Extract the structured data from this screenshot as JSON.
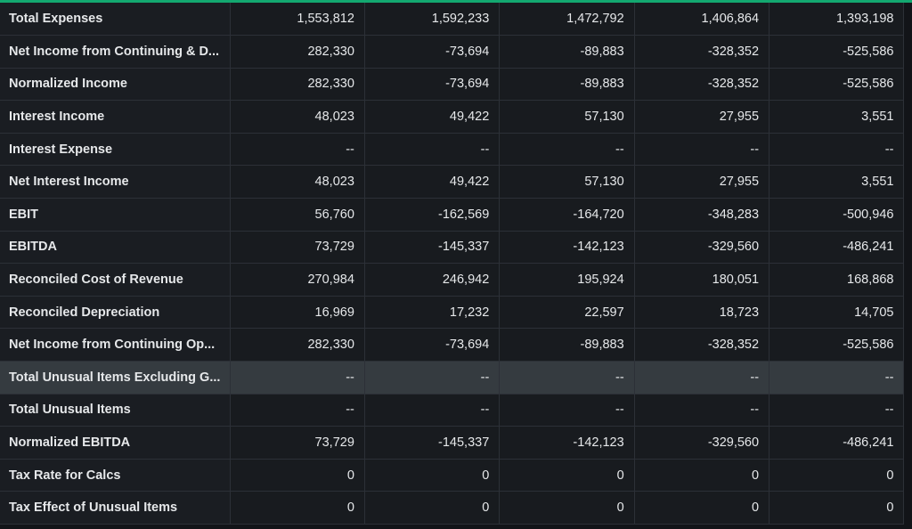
{
  "table": {
    "rows": [
      {
        "label": "Total Expenses",
        "values": [
          "1,553,812",
          "1,592,233",
          "1,472,792",
          "1,406,864",
          "1,393,198"
        ]
      },
      {
        "label": "Net Income from Continuing & D...",
        "values": [
          "282,330",
          "-73,694",
          "-89,883",
          "-328,352",
          "-525,586"
        ]
      },
      {
        "label": "Normalized Income",
        "values": [
          "282,330",
          "-73,694",
          "-89,883",
          "-328,352",
          "-525,586"
        ]
      },
      {
        "label": "Interest Income",
        "values": [
          "48,023",
          "49,422",
          "57,130",
          "27,955",
          "3,551"
        ]
      },
      {
        "label": "Interest Expense",
        "values": [
          "--",
          "--",
          "--",
          "--",
          "--"
        ]
      },
      {
        "label": "Net Interest Income",
        "values": [
          "48,023",
          "49,422",
          "57,130",
          "27,955",
          "3,551"
        ]
      },
      {
        "label": "EBIT",
        "values": [
          "56,760",
          "-162,569",
          "-164,720",
          "-348,283",
          "-500,946"
        ]
      },
      {
        "label": "EBITDA",
        "values": [
          "73,729",
          "-145,337",
          "-142,123",
          "-329,560",
          "-486,241"
        ]
      },
      {
        "label": "Reconciled Cost of Revenue",
        "values": [
          "270,984",
          "246,942",
          "195,924",
          "180,051",
          "168,868"
        ]
      },
      {
        "label": "Reconciled Depreciation",
        "values": [
          "16,969",
          "17,232",
          "22,597",
          "18,723",
          "14,705"
        ]
      },
      {
        "label": "Net Income from Continuing Op...",
        "values": [
          "282,330",
          "-73,694",
          "-89,883",
          "-328,352",
          "-525,586"
        ]
      },
      {
        "label": "Total Unusual Items Excluding G...",
        "values": [
          "--",
          "--",
          "--",
          "--",
          "--"
        ]
      },
      {
        "label": "Total Unusual Items",
        "values": [
          "--",
          "--",
          "--",
          "--",
          "--"
        ]
      },
      {
        "label": "Normalized EBITDA",
        "values": [
          "73,729",
          "-145,337",
          "-142,123",
          "-329,560",
          "-486,241"
        ]
      },
      {
        "label": "Tax Rate for Calcs",
        "values": [
          "0",
          "0",
          "0",
          "0",
          "0"
        ]
      },
      {
        "label": "Tax Effect of Unusual Items",
        "values": [
          "0",
          "0",
          "0",
          "0",
          "0"
        ]
      }
    ],
    "highlighted_row": 11
  },
  "colors": {
    "accent": "#13a870",
    "highlight_row": "#353b40"
  }
}
